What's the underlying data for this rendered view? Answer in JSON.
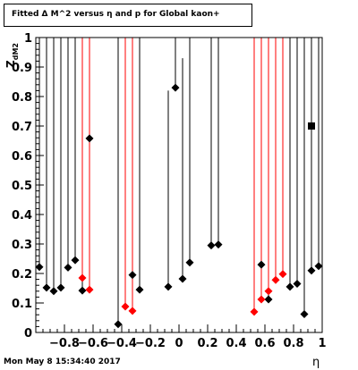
{
  "title": "Fitted Δ M^2 versus η and p for Global kaon+",
  "footer": "Mon May  8 15:34:40 2017",
  "chart_data": {
    "type": "scatter",
    "title": "Fitted Δ M^2 versus η and p for Global kaon+",
    "xlabel": "η",
    "ylabel": "Z_dM2",
    "xlim": [
      -1,
      1
    ],
    "ylim": [
      0,
      1
    ],
    "x_ticks": [
      -0.8,
      -0.6,
      -0.4,
      -0.2,
      0,
      0.2,
      0.4,
      0.6,
      0.8,
      1
    ],
    "x_tick_labels": [
      "−0.8",
      "−0.6",
      "−0.4",
      "−0.2",
      "0",
      "0.2",
      "0.4",
      "0.6",
      "0.8",
      "1"
    ],
    "y_ticks": [
      0,
      0.1,
      0.2,
      0.3,
      0.4,
      0.5,
      0.6,
      0.7,
      0.8,
      0.9,
      1
    ],
    "y_tick_labels": [
      "0",
      "0.1",
      "0.2",
      "0.3",
      "0.4",
      "0.5",
      "0.6",
      "0.7",
      "0.8",
      "0.9",
      "1"
    ],
    "grid": false,
    "series": [
      {
        "color": "#000000",
        "marker": "diamond",
        "points": [
          {
            "x": -0.975,
            "y": 0.222,
            "err_hi": 1.0
          },
          {
            "x": -0.925,
            "y": 0.152,
            "err_hi": 1.0
          },
          {
            "x": -0.875,
            "y": 0.14,
            "err_hi": 1.0
          },
          {
            "x": -0.825,
            "y": 0.152,
            "err_hi": 1.0
          },
          {
            "x": -0.775,
            "y": 0.22,
            "err_hi": 1.0
          },
          {
            "x": -0.725,
            "y": 0.245,
            "err_hi": 1.0
          },
          {
            "x": -0.675,
            "y": 0.142,
            "err_hi": 1.0
          },
          {
            "x": -0.625,
            "y": 0.658,
            "err_hi": 1.0
          },
          {
            "x": -0.425,
            "y": 0.028,
            "err_hi": 1.0
          },
          {
            "x": -0.325,
            "y": 0.195,
            "err_hi": 1.0
          },
          {
            "x": -0.275,
            "y": 0.145,
            "err_hi": 1.0
          },
          {
            "x": -0.075,
            "y": 0.155,
            "err_hi": 0.82
          },
          {
            "x": -0.025,
            "y": 0.83,
            "err_hi": 1.0
          },
          {
            "x": 0.025,
            "y": 0.182,
            "err_hi": 0.93
          },
          {
            "x": 0.075,
            "y": 0.237,
            "err_hi": 1.0
          },
          {
            "x": 0.225,
            "y": 0.295,
            "err_hi": 1.0
          },
          {
            "x": 0.275,
            "y": 0.298,
            "err_hi": 1.0
          },
          {
            "x": 0.575,
            "y": 0.23,
            "err_hi": 1.0
          },
          {
            "x": 0.625,
            "y": 0.112,
            "err_hi": 1.0
          },
          {
            "x": 0.775,
            "y": 0.155,
            "err_hi": 1.0
          },
          {
            "x": 0.825,
            "y": 0.165,
            "err_hi": 1.0
          },
          {
            "x": 0.875,
            "y": 0.062,
            "err_hi": 1.0
          },
          {
            "x": 0.925,
            "y": 0.21,
            "err_hi": 1.0
          },
          {
            "x": 0.975,
            "y": 0.225,
            "err_hi": 1.0
          }
        ]
      },
      {
        "color": "#ff0000",
        "marker": "diamond",
        "points": [
          {
            "x": -0.675,
            "y": 0.185,
            "err_hi": 1.0
          },
          {
            "x": -0.625,
            "y": 0.145,
            "err_hi": 1.0
          },
          {
            "x": -0.375,
            "y": 0.088,
            "err_hi": 1.0
          },
          {
            "x": -0.325,
            "y": 0.073,
            "err_hi": 1.0
          },
          {
            "x": 0.525,
            "y": 0.07,
            "err_hi": 1.0
          },
          {
            "x": 0.575,
            "y": 0.112,
            "err_hi": 1.0
          },
          {
            "x": 0.625,
            "y": 0.14,
            "err_hi": 1.0
          },
          {
            "x": 0.675,
            "y": 0.178,
            "err_hi": 1.0
          },
          {
            "x": 0.725,
            "y": 0.198,
            "err_hi": 1.0
          }
        ]
      },
      {
        "color": "#000000",
        "marker": "square",
        "points": [
          {
            "x": 0.925,
            "y": 0.7
          }
        ]
      }
    ]
  }
}
